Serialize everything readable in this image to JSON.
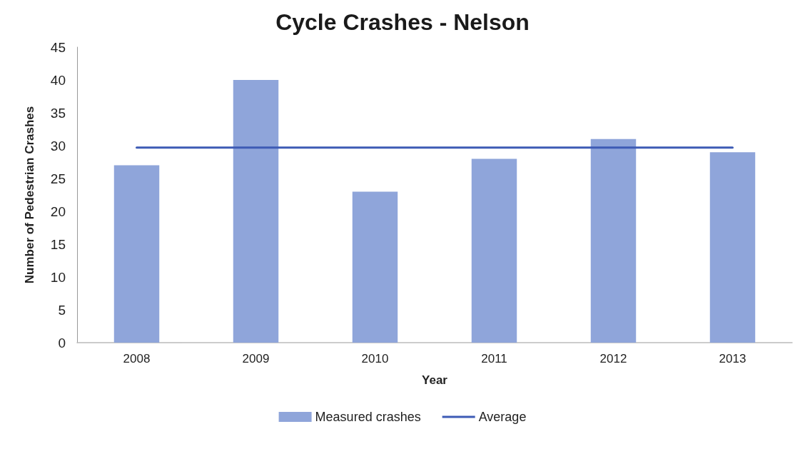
{
  "chart_data": {
    "type": "bar",
    "title": "Cycle Crashes - Nelson",
    "xlabel": "Year",
    "ylabel": "Number of Pedestrian Crashes",
    "categories": [
      "2008",
      "2009",
      "2010",
      "2011",
      "2012",
      "2013"
    ],
    "series": [
      {
        "name": "Measured crashes",
        "color": "#8fa5da",
        "values": [
          27,
          40,
          23,
          28,
          31,
          29
        ]
      },
      {
        "name": "Average",
        "type": "line",
        "color": "#3d5bb5",
        "values": [
          29.7,
          29.7,
          29.7,
          29.7,
          29.7,
          29.7
        ]
      }
    ],
    "ylim": [
      0,
      45
    ],
    "yticks": [
      0,
      5,
      10,
      15,
      20,
      25,
      30,
      35,
      40,
      45
    ],
    "grid": false,
    "legend": "bottom",
    "marker": "none",
    "line_style": "solid"
  }
}
